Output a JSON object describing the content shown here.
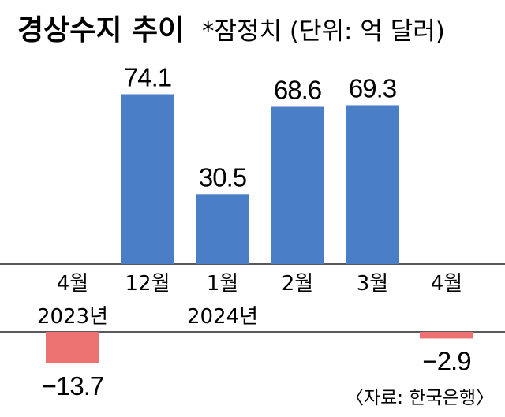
{
  "chart_data": {
    "type": "bar",
    "title": "경상수지 추이",
    "subtitle": "*잠정치 (단위: 억 달러)",
    "categories": [
      {
        "month": "4월",
        "year": "2023년"
      },
      {
        "month": "12월",
        "year": ""
      },
      {
        "month": "1월",
        "year": "2024년"
      },
      {
        "month": "2월",
        "year": ""
      },
      {
        "month": "3월",
        "year": ""
      },
      {
        "month": "4월",
        "year": ""
      }
    ],
    "values": [
      -13.7,
      74.1,
      30.5,
      68.6,
      69.3,
      -2.9
    ],
    "value_labels": [
      "−13.7",
      "74.1",
      "30.5",
      "68.6",
      "69.3",
      "−2.9"
    ],
    "colors": {
      "positive": "#4a7fc8",
      "negative": "#ec7272"
    },
    "source": "〈자료: 한국은행〉",
    "grid": false
  }
}
